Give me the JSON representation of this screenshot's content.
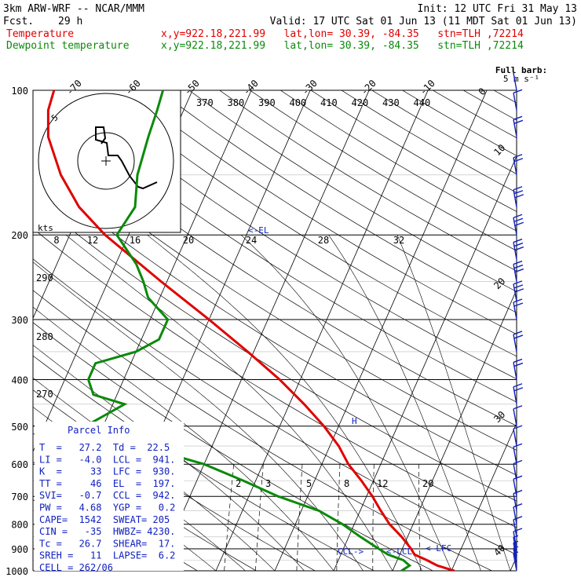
{
  "header": {
    "model": "3km ARW-WRF -- NCAR/MMM",
    "init": "Init: 12 UTC Fri 31 May 13",
    "fcst_label": "Fcst.",
    "fcst_hour": "29 h",
    "valid": "Valid: 17 UTC Sat 01 Jun 13 (11 MDT Sat 01 Jun 13)",
    "temp_label": "Temperature",
    "dew_label": "Dewpoint temperature",
    "loc": "x,y=922.18,221.99   lat,lon= 30.39, -84.35   stn=TLH ,72214"
  },
  "barb_legend": {
    "line1": "Full barb:",
    "line2": "5 m s⁻¹"
  },
  "hodo_label": "kts",
  "hodo_ring_label": "5",
  "hodo_ticks": [
    "8",
    "12",
    "16",
    "20",
    "24",
    "28",
    "32"
  ],
  "theta_labels": [
    "370",
    "380",
    "390",
    "400",
    "410",
    "420",
    "430",
    "440"
  ],
  "theta_left": [
    "290",
    "280",
    "270"
  ],
  "mixing_labels": [
    "2",
    "3",
    "5",
    "8",
    "12",
    "20"
  ],
  "markers": {
    "el": "<-EL",
    "ccl": "CCL->",
    "lcl": "<-LCL",
    "lfc": "<-LFC",
    "h": "H"
  },
  "parcel_info": {
    "title": "Parcel Info",
    "rows": [
      "T  =   27.2  Td =  22.5",
      "LI =   -4.0  LCL =  941.",
      "K  =     33  LFC =  930.",
      "TT =     46  EL  =  197.",
      "SVI=   -0.7  CCL =  942.",
      "PW =   4.68  YGP =   0.2",
      "CAPE=  1542  SWEAT= 205",
      "CIN =   -35  HWBZ= 4230.",
      "Tc =   26.7  SHEAR=  17.",
      "SREH =   11  LAPSE=  6.2",
      "CELL = 262/06"
    ]
  },
  "chart_data": {
    "type": "line",
    "diagram": "skew-T log-p",
    "y_axis": {
      "label": "",
      "scale": "log",
      "range": [
        1000,
        100
      ],
      "ticks": [
        100,
        200,
        300,
        400,
        500,
        600,
        700,
        800,
        900,
        1000
      ]
    },
    "isotherm_ticks": [
      -80,
      -70,
      -60,
      -50,
      -40,
      -30,
      -20,
      -10,
      0,
      10,
      20,
      30,
      40
    ],
    "series": [
      {
        "name": "Temperature",
        "color": "#e00000",
        "p": [
          1000,
          975,
          950,
          925,
          900,
          850,
          800,
          750,
          700,
          650,
          600,
          550,
          500,
          450,
          400,
          350,
          300,
          250,
          200,
          175,
          150,
          125,
          110,
          100
        ],
        "t": [
          30.5,
          27.2,
          25.0,
          22.5,
          21.5,
          19.0,
          16.0,
          13.5,
          11.0,
          8.0,
          4.5,
          1.5,
          -2.5,
          -7.5,
          -13.5,
          -21.0,
          -30.0,
          -41.0,
          -54.0,
          -60.5,
          -66.0,
          -71.0,
          -73.0,
          -73.5
        ]
      },
      {
        "name": "Dewpoint temperature",
        "color": "#0a8a0a",
        "p": [
          1000,
          975,
          950,
          925,
          900,
          850,
          800,
          750,
          700,
          650,
          600,
          550,
          500,
          450,
          430,
          400,
          370,
          350,
          330,
          300,
          270,
          250,
          230,
          200,
          175,
          150,
          125,
          110,
          100
        ],
        "td": [
          21.5,
          22.5,
          21.0,
          18.0,
          16.0,
          12.0,
          8.0,
          3.0,
          -5.0,
          -12.0,
          -20.0,
          -32.0,
          -43.0,
          -38.0,
          -44.0,
          -46.0,
          -46.0,
          -40.0,
          -37.0,
          -37.0,
          -42.0,
          -44.0,
          -46.5,
          -52.0,
          -51.0,
          -53.0,
          -54.0,
          -54.5,
          -55.0
        ]
      }
    ],
    "wind_barbs": [
      {
        "p": 1000,
        "speed_ms": 2
      },
      {
        "p": 975,
        "speed_ms": 3
      },
      {
        "p": 950,
        "speed_ms": 4
      },
      {
        "p": 925,
        "speed_ms": 4
      },
      {
        "p": 900,
        "speed_ms": 5
      },
      {
        "p": 850,
        "speed_ms": 5
      },
      {
        "p": 800,
        "speed_ms": 5
      },
      {
        "p": 750,
        "speed_ms": 5
      },
      {
        "p": 700,
        "speed_ms": 5
      },
      {
        "p": 650,
        "speed_ms": 5
      },
      {
        "p": 600,
        "speed_ms": 5
      },
      {
        "p": 550,
        "speed_ms": 5
      },
      {
        "p": 500,
        "speed_ms": 5
      },
      {
        "p": 450,
        "speed_ms": 10
      },
      {
        "p": 400,
        "speed_ms": 10
      },
      {
        "p": 350,
        "speed_ms": 10
      },
      {
        "p": 300,
        "speed_ms": 10
      },
      {
        "p": 275,
        "speed_ms": 15
      },
      {
        "p": 250,
        "speed_ms": 15
      },
      {
        "p": 225,
        "speed_ms": 15
      },
      {
        "p": 200,
        "speed_ms": 15
      },
      {
        "p": 175,
        "speed_ms": 15
      },
      {
        "p": 150,
        "speed_ms": 10
      },
      {
        "p": 125,
        "speed_ms": 10
      },
      {
        "p": 110,
        "speed_ms": 5
      },
      {
        "p": 100,
        "speed_ms": 0
      }
    ]
  }
}
